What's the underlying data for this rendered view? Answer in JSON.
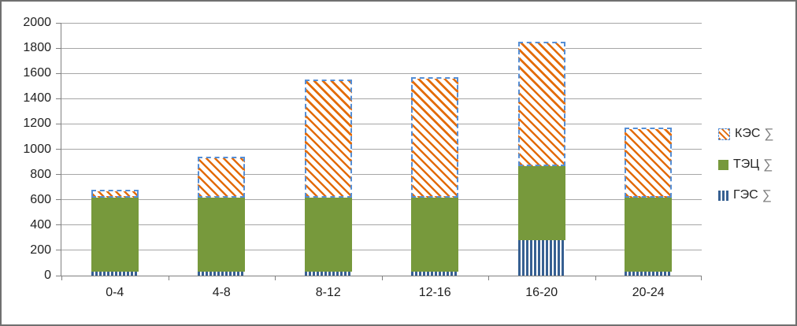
{
  "window": {
    "background": "#FFFFFF",
    "border_color": "#707070"
  },
  "chart_data": {
    "type": "bar",
    "stacked": true,
    "title": "",
    "xlabel": "",
    "ylabel": "",
    "categories": [
      "0-4",
      "4-8",
      "8-12",
      "12-16",
      "16-20",
      "20-24"
    ],
    "series": [
      {
        "name": "ГЭС ∑",
        "pattern": "vertical-stripes",
        "color": "#376092",
        "values": [
          30,
          30,
          30,
          30,
          280,
          30
        ]
      },
      {
        "name": "ТЭЦ ∑",
        "pattern": "solid",
        "color": "#77993C",
        "values": [
          600,
          600,
          600,
          600,
          600,
          600
        ]
      },
      {
        "name": "КЭС ∑",
        "pattern": "diagonal-hatch",
        "color": "#E36C09",
        "border_color": "#558ED5",
        "values": [
          50,
          310,
          920,
          940,
          970,
          540
        ]
      }
    ],
    "totals": [
      680,
      940,
      1550,
      1570,
      1850,
      1170
    ],
    "ylim": [
      0,
      2000
    ],
    "yticks": [
      0,
      200,
      400,
      600,
      800,
      1000,
      1200,
      1400,
      1600,
      1800,
      2000
    ],
    "grid": true,
    "legend_position": "right"
  },
  "legend": {
    "items": [
      {
        "label": "КЭС",
        "sigma": "∑",
        "series": "КЭС ∑"
      },
      {
        "label": "ТЭЦ",
        "sigma": "∑",
        "series": "ТЭЦ ∑"
      },
      {
        "label": "ГЭС",
        "sigma": "∑",
        "series": "ГЭС ∑"
      }
    ]
  },
  "colors": {
    "gridline": "#A6A6A6",
    "axis": "#808080",
    "text": "#1F1F1F",
    "sigma": "#7F7F7F"
  }
}
